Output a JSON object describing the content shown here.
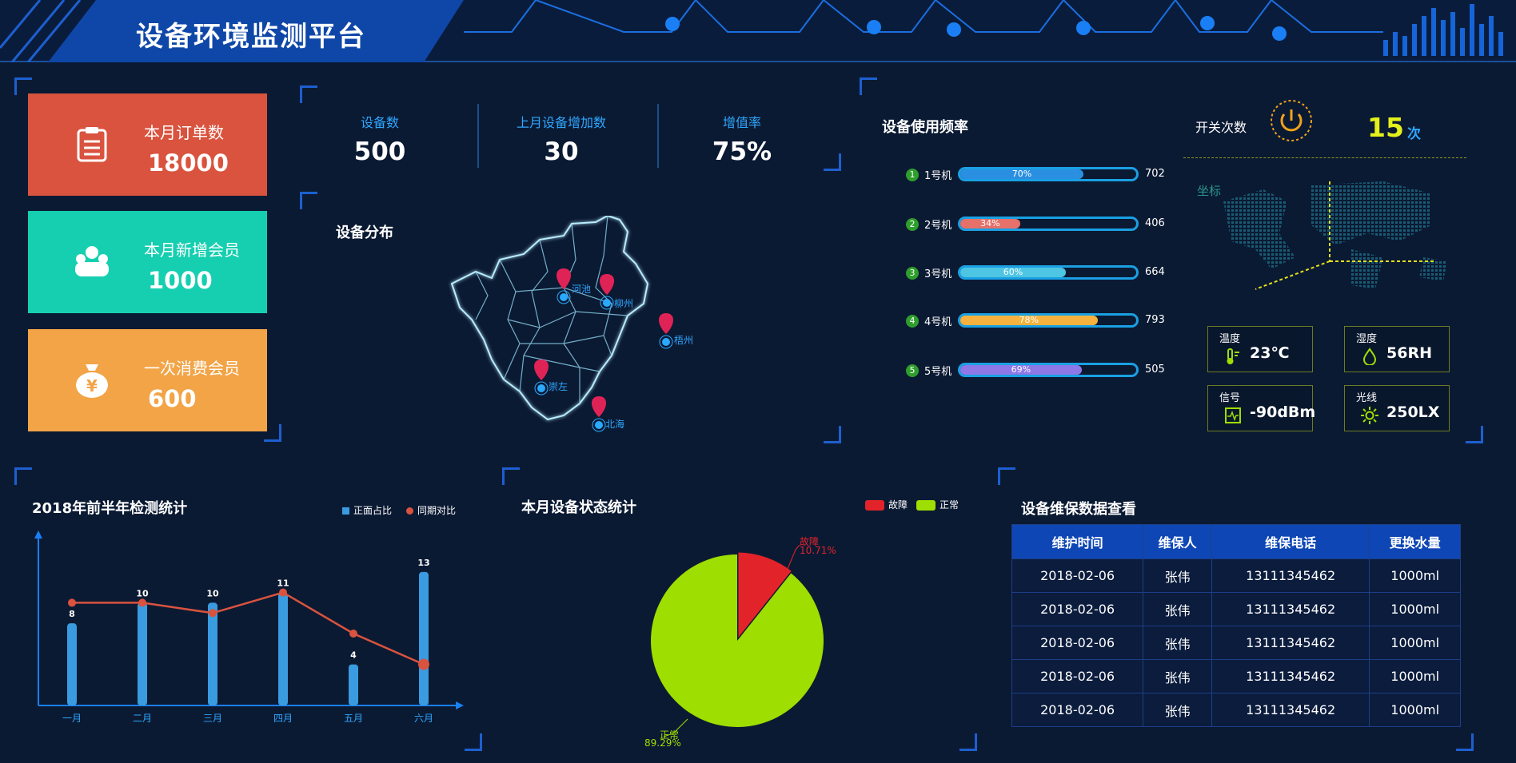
{
  "header": {
    "title": "设备环境监测平台"
  },
  "kpis": [
    {
      "label": "本月订单数",
      "value": "18000",
      "color": "#d9533e",
      "icon": "clipboard-icon"
    },
    {
      "label": "本月新增会员",
      "value": "1000",
      "color": "#16cfb0",
      "icon": "people-icon"
    },
    {
      "label": "一次消费会员",
      "value": "600",
      "color": "#f2a447",
      "icon": "money-bag-icon"
    }
  ],
  "stats": [
    {
      "label": "设备数",
      "value": "500"
    },
    {
      "label": "上月设备增加数",
      "value": "30"
    },
    {
      "label": "增值率",
      "value": "75%"
    }
  ],
  "distribution": {
    "title": "设备分布",
    "cities": [
      "河池",
      "柳州",
      "梧州",
      "崇左",
      "北海"
    ]
  },
  "frequency": {
    "title": "设备使用频率",
    "rows": [
      {
        "index": "1",
        "label": "1号机",
        "percent": 70,
        "percent_label": "70%",
        "value": "702",
        "color": "#2a8fe0"
      },
      {
        "index": "2",
        "label": "2号机",
        "percent": 34,
        "percent_label": "34%",
        "value": "406",
        "color": "#e5716a"
      },
      {
        "index": "3",
        "label": "3号机",
        "percent": 60,
        "percent_label": "60%",
        "value": "664",
        "color": "#4ec6e3"
      },
      {
        "index": "4",
        "label": "4号机",
        "percent": 78,
        "percent_label": "78%",
        "value": "793",
        "color": "#f5b23e"
      },
      {
        "index": "5",
        "label": "5号机",
        "percent": 69,
        "percent_label": "69%",
        "value": "505",
        "color": "#8d78e8"
      }
    ]
  },
  "switch": {
    "label": "开关次数",
    "count": "15",
    "unit": "次",
    "icon": "power-icon"
  },
  "coord": {
    "label": "坐标"
  },
  "sensors": [
    {
      "label": "温度",
      "value": "23℃",
      "icon": "thermometer-icon"
    },
    {
      "label": "湿度",
      "value": "56RH",
      "icon": "droplet-icon"
    },
    {
      "label": "信号",
      "value": "-90dBm",
      "icon": "signal-icon"
    },
    {
      "label": "光线",
      "value": "250LX",
      "icon": "sun-icon"
    }
  ],
  "detect": {
    "title": "2018年前半年检测统计",
    "legend": [
      "正面占比",
      "同期对比"
    ]
  },
  "status": {
    "title": "本月设备状态统计",
    "legend": [
      "故障",
      "正常"
    ],
    "fault_label": "故障",
    "fault_pct": "10.71%",
    "normal_label": "正常",
    "normal_pct": "89.29%"
  },
  "maintenance": {
    "title": "设备维保数据查看",
    "columns": [
      "维护时间",
      "维保人",
      "维保电话",
      "更换水量"
    ],
    "rows": [
      [
        "2018-02-06",
        "张伟",
        "13111345462",
        "1000ml"
      ],
      [
        "2018-02-06",
        "张伟",
        "13111345462",
        "1000ml"
      ],
      [
        "2018-02-06",
        "张伟",
        "13111345462",
        "1000ml"
      ],
      [
        "2018-02-06",
        "张伟",
        "13111345462",
        "1000ml"
      ],
      [
        "2018-02-06",
        "张伟",
        "13111345462",
        "1000ml"
      ]
    ]
  },
  "chart_data": [
    {
      "type": "bar",
      "title": "2018年前半年检测统计",
      "categories": [
        "一月",
        "二月",
        "三月",
        "四月",
        "五月",
        "六月"
      ],
      "series": [
        {
          "name": "正面占比",
          "type": "bar",
          "values": [
            8,
            10,
            10,
            11,
            4,
            13
          ],
          "color": "#3a9be0"
        },
        {
          "name": "同期对比",
          "type": "line",
          "values": [
            10,
            10,
            9,
            11,
            7,
            4
          ],
          "color": "#d9533e"
        }
      ],
      "ylim": [
        0,
        14
      ],
      "legend": "top-right"
    },
    {
      "type": "pie",
      "title": "本月设备状态统计",
      "labels": [
        "故障",
        "正常"
      ],
      "values": [
        10.71,
        89.29
      ],
      "colors": [
        "#e3232a",
        "#9ede00"
      ],
      "legend": "top-right"
    }
  ]
}
